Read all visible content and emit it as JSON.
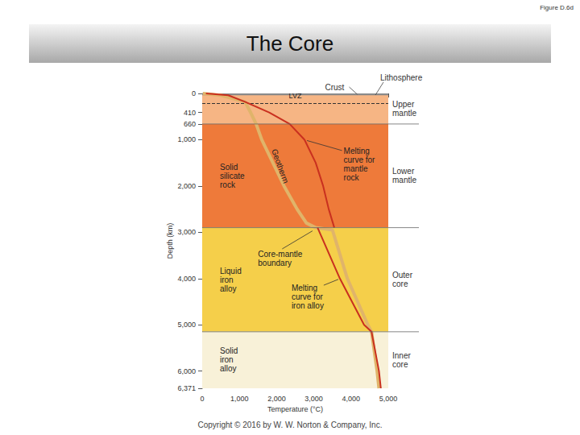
{
  "chart_data": {
    "type": "line",
    "header": "Figure D.6d",
    "title": "The Core",
    "copyright": "Copyright © 2016 by W. W. Norton & Company, Inc.",
    "xlabel": "Temperature (°C)",
    "ylabel": "Depth (km)",
    "xlim": [
      0,
      5000
    ],
    "xticks": [
      0,
      {
        "value": 1000,
        "label": "1,000"
      },
      {
        "value": 2000,
        "label": "2,000"
      },
      {
        "value": 3000,
        "label": "3,000"
      },
      {
        "value": 4000,
        "label": "4,000"
      },
      {
        "value": 5000,
        "label": "5,000"
      }
    ],
    "ylim": [
      0,
      6371
    ],
    "yticks": [
      0,
      410,
      660,
      {
        "value": 1000,
        "label": "1,000"
      },
      {
        "value": 2000,
        "label": "2,000"
      },
      {
        "value": 3000,
        "label": "3,000"
      },
      {
        "value": 4000,
        "label": "4,000"
      },
      {
        "value": 5000,
        "label": "5,000"
      },
      {
        "value": 6000,
        "label": "6,000"
      },
      {
        "value": 6371,
        "label": "6,371"
      }
    ],
    "grid": false,
    "series": [
      {
        "name": "Geotherm",
        "color": "#e0b46a",
        "x": [
          20,
          500,
          1150,
          1300,
          1450,
          1600,
          1900,
          2200,
          2550,
          2800,
          3050,
          3500,
          3900,
          4450,
          4550,
          4700,
          4750
        ],
        "values": [
          0,
          40,
          180,
          410,
          660,
          1000,
          1500,
          2000,
          2500,
          2800,
          2900,
          2950,
          4000,
          5000,
          5150,
          6000,
          6371
        ]
      },
      {
        "name": "Melting curve for mantle rock",
        "color": "#c9301f",
        "x": [
          100,
          700,
          1150,
          1800,
          2350,
          2750,
          3050,
          3250,
          3400,
          3550
        ],
        "values": [
          0,
          40,
          180,
          410,
          660,
          1000,
          1500,
          2000,
          2500,
          2900
        ]
      },
      {
        "name": "Melting curve for iron alloy",
        "color": "#c9301f",
        "x": [
          3100,
          3700,
          4350,
          4550,
          4750,
          4800
        ],
        "values": [
          2900,
          4000,
          5000,
          5150,
          6000,
          6371
        ]
      }
    ],
    "layers": [
      {
        "name": "Upper mantle",
        "from": 0,
        "to": 660,
        "color": "#f6b584"
      },
      {
        "name": "Lower mantle",
        "from": 660,
        "to": 2900,
        "color": "#ee7a3a",
        "state": "Solid silicate rock"
      },
      {
        "name": "Outer core",
        "from": 2900,
        "to": 5150,
        "color": "#f5cf4a",
        "state": "Liquid iron alloy"
      },
      {
        "name": "Inner core",
        "from": 5150,
        "to": 6371,
        "color": "#f8f1d8",
        "state": "Solid iron alloy"
      }
    ],
    "crust": {
      "label": "Crust",
      "from": 0,
      "to": 40,
      "color": "#8a8a8a"
    },
    "lithosphere_label": "Lithosphere",
    "lvz": {
      "label": "LVZ",
      "depth": 220,
      "line_style": "dashed"
    },
    "core_mantle_boundary": "Core-mantle boundary"
  }
}
